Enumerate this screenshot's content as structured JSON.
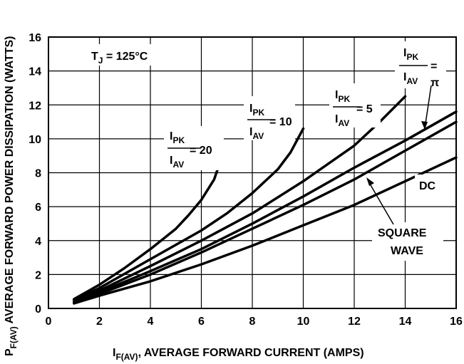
{
  "chart_data": {
    "type": "line",
    "title": "",
    "xlabel": {
      "main": "I",
      "sub": "F(AV)",
      "rest": ", AVERAGE FORWARD CURRENT (AMPS)"
    },
    "ylabel": {
      "main": "P",
      "sub": "F(AV)",
      "rest": " AVERAGE FORWARD POWER DISSIPATION (WATTS)"
    },
    "xlim": [
      0,
      16
    ],
    "ylim": [
      0,
      16
    ],
    "xticks": [
      0,
      2,
      4,
      6,
      8,
      10,
      12,
      14,
      16
    ],
    "yticks": [
      0,
      2,
      4,
      6,
      8,
      10,
      12,
      14,
      16
    ],
    "grid": true,
    "condition": {
      "main": "T",
      "sub": "J",
      "rest": " = 125°C"
    },
    "ratio_labels": {
      "num_main": "I",
      "num_sub": "PK",
      "den_main": "I",
      "den_sub": "AV"
    },
    "annotations": {
      "r20": "= 20",
      "r10": "= 10",
      "r5": "= 5",
      "rpi_eq": "=",
      "rpi_val": "π",
      "dc": "DC",
      "square1": "SQUARE",
      "square2": "WAVE"
    },
    "series": [
      {
        "name": "20",
        "x": [
          1,
          2,
          3,
          4,
          5,
          5.5,
          6,
          6.5,
          6.8
        ],
        "y": [
          0.55,
          1.4,
          2.4,
          3.5,
          4.7,
          5.5,
          6.4,
          7.6,
          8.9
        ]
      },
      {
        "name": "10",
        "x": [
          1,
          2,
          4,
          6,
          7,
          8,
          9,
          9.5,
          10
        ],
        "y": [
          0.5,
          1.2,
          2.9,
          4.6,
          5.6,
          6.8,
          8.2,
          9.2,
          10.6
        ]
      },
      {
        "name": "5",
        "x": [
          1,
          2,
          4,
          6,
          8,
          10,
          12,
          13,
          14
        ],
        "y": [
          0.45,
          1.05,
          2.5,
          4.0,
          5.6,
          7.5,
          9.6,
          11.0,
          12.5
        ]
      },
      {
        "name": "π",
        "x": [
          1,
          2,
          4,
          6,
          8,
          10,
          12,
          14,
          16
        ],
        "y": [
          0.4,
          0.95,
          2.2,
          3.5,
          5.0,
          6.6,
          8.3,
          9.9,
          11.6
        ]
      },
      {
        "name": "SQUARE WAVE",
        "x": [
          1,
          2,
          4,
          6,
          8,
          10,
          12,
          14,
          16
        ],
        "y": [
          0.35,
          0.85,
          2.0,
          3.3,
          4.7,
          6.1,
          7.6,
          9.3,
          11.0
        ]
      },
      {
        "name": "DC",
        "x": [
          1,
          2,
          4,
          6,
          8,
          10,
          12,
          14,
          16
        ],
        "y": [
          0.3,
          0.75,
          1.6,
          2.6,
          3.7,
          4.9,
          6.1,
          7.5,
          8.9
        ]
      }
    ]
  }
}
